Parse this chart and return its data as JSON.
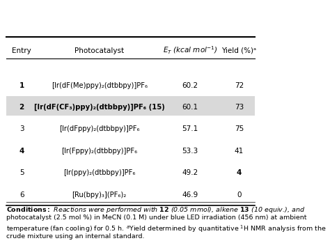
{
  "header": [
    "Entry",
    "Photocatalyst",
    "E_T (kcal mol⁻¹)",
    "Yield (%)ᵃ"
  ],
  "header_italic_col": 2,
  "rows": [
    {
      "entry": "1",
      "catalyst": "[Ir(dF(Me)ppy)₂(dtbbpy)]PF₆",
      "ET": "60.2",
      "yield": "72",
      "bold_entry": true,
      "bold_yield": false,
      "highlight": false
    },
    {
      "entry": "2",
      "catalyst": "[Ir(dF(CF₃)ppy)₂(dtbbpy)]PF₆ (15)",
      "ET": "60.1",
      "yield": "73",
      "bold_entry": true,
      "bold_yield": false,
      "highlight": true
    },
    {
      "entry": "3",
      "catalyst": "[Ir(dFppy)₂(dtbbpy)]PF₆",
      "ET": "57.1",
      "yield": "75",
      "bold_entry": false,
      "bold_yield": false,
      "highlight": false
    },
    {
      "entry": "4",
      "catalyst": "[Ir(Fppy)₂(dtbbpy)]PF₆",
      "ET": "53.3",
      "yield": "41",
      "bold_entry": true,
      "bold_yield": false,
      "highlight": false
    },
    {
      "entry": "5",
      "catalyst": "[Ir(ppy)₂(dtbbpy)]PF₆",
      "ET": "49.2",
      "yield": "4",
      "bold_entry": false,
      "bold_yield": true,
      "highlight": false
    },
    {
      "entry": "6",
      "catalyst": "[Ru(bpy)₃](PF₆)₂",
      "ET": "46.9",
      "yield": "0",
      "bold_entry": false,
      "bold_yield": false,
      "highlight": false
    }
  ],
  "conditions_text": "Conditions: Reactions were performed with 12 (0.05 mmol), alkene 13 (10 equiv.), and photocatalyst (2.5 mol %) in MeCN (0.1 M) under blue LED irradiation (456 nm) at ambient temperature (fan cooling) for 0.5 h. ᵃYield determined by quantitative ¹H NMR analysis from the crude mixture using an internal standard.",
  "highlight_color": "#d9d9d9",
  "bg_color": "#ffffff",
  "text_color": "#000000",
  "header_line_color": "#000000",
  "font_size": 7.5,
  "conditions_font_size": 6.8
}
